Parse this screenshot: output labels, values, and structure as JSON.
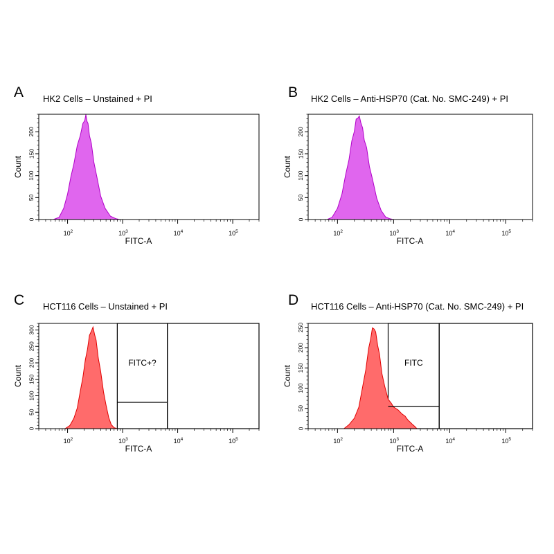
{
  "chart_data": [
    {
      "panel": "A",
      "type": "area",
      "title": "HK2 Cells – Unstained + PI",
      "xlabel": "FITC-A",
      "ylabel": "Count",
      "x_scale": "log",
      "xlim": [
        30,
        300000
      ],
      "xticks": [
        {
          "base": "10",
          "exp": "2"
        },
        {
          "base": "10",
          "exp": "3"
        },
        {
          "base": "10",
          "exp": "4"
        },
        {
          "base": "10",
          "exp": "5"
        }
      ],
      "ylim": [
        0,
        240
      ],
      "yticks": [
        0,
        50,
        100,
        150,
        200
      ],
      "fill_color": "#e066ee",
      "edge_color": "#b000c8",
      "series": [
        {
          "x": [
            55,
            70,
            85,
            100,
            115,
            130,
            150,
            170,
            190,
            205,
            215,
            225,
            235,
            250,
            270,
            300,
            340,
            400,
            480,
            600,
            750,
            900
          ],
          "y": [
            0,
            5,
            25,
            60,
            95,
            130,
            165,
            195,
            215,
            230,
            235,
            228,
            215,
            195,
            170,
            135,
            95,
            55,
            25,
            8,
            2,
            0
          ]
        }
      ],
      "gates": []
    },
    {
      "panel": "B",
      "type": "area",
      "title": "HK2 Cells – Anti-HSP70 (Cat. No. SMC-249) + PI",
      "xlabel": "FITC-A",
      "ylabel": "Count",
      "x_scale": "log",
      "xlim": [
        30,
        300000
      ],
      "xticks": [
        {
          "base": "10",
          "exp": "2"
        },
        {
          "base": "10",
          "exp": "3"
        },
        {
          "base": "10",
          "exp": "4"
        },
        {
          "base": "10",
          "exp": "5"
        }
      ],
      "ylim": [
        0,
        240
      ],
      "yticks": [
        0,
        50,
        100,
        150,
        200
      ],
      "fill_color": "#e066ee",
      "edge_color": "#b000c8",
      "series": [
        {
          "x": [
            65,
            80,
            100,
            120,
            140,
            160,
            180,
            200,
            215,
            230,
            245,
            260,
            280,
            300,
            330,
            370,
            420,
            500,
            600,
            720,
            850,
            1000
          ],
          "y": [
            0,
            5,
            25,
            60,
            100,
            140,
            175,
            205,
            225,
            235,
            232,
            225,
            205,
            185,
            160,
            125,
            90,
            50,
            20,
            6,
            2,
            0
          ]
        }
      ],
      "gates": []
    },
    {
      "panel": "C",
      "type": "area",
      "title": "HCT116 Cells – Unstained + PI",
      "xlabel": "FITC-A",
      "ylabel": "Count",
      "x_scale": "log",
      "xlim": [
        30,
        300000
      ],
      "xticks": [
        {
          "base": "10",
          "exp": "2"
        },
        {
          "base": "10",
          "exp": "3"
        },
        {
          "base": "10",
          "exp": "4"
        },
        {
          "base": "10",
          "exp": "5"
        }
      ],
      "ylim": [
        0,
        320
      ],
      "yticks": [
        0,
        50,
        100,
        150,
        200,
        250,
        300
      ],
      "fill_color": "#ff6b6b",
      "edge_color": "#e00000",
      "series": [
        {
          "x": [
            90,
            110,
            130,
            150,
            170,
            190,
            210,
            230,
            250,
            270,
            290,
            310,
            330,
            360,
            400,
            450,
            500,
            560,
            620,
            700,
            800
          ],
          "y": [
            0,
            10,
            30,
            65,
            110,
            160,
            205,
            245,
            280,
            300,
            305,
            290,
            265,
            220,
            170,
            115,
            70,
            35,
            12,
            3,
            0
          ]
        }
      ],
      "gates": [
        {
          "label": "FITC+?",
          "x": [
            800,
            6500
          ],
          "y_top": 320
        },
        {
          "label": "",
          "x": [
            6500,
            300000
          ],
          "y_top": 320
        }
      ],
      "gate_divider": {
        "x": [
          800,
          6500
        ],
        "y": 80
      }
    },
    {
      "panel": "D",
      "type": "area",
      "title": "HCT116 Cells – Anti-HSP70 (Cat. No. SMC-249) + PI",
      "xlabel": "FITC-A",
      "ylabel": "Count",
      "x_scale": "log",
      "xlim": [
        30,
        300000
      ],
      "xticks": [
        {
          "base": "10",
          "exp": "2"
        },
        {
          "base": "10",
          "exp": "3"
        },
        {
          "base": "10",
          "exp": "4"
        },
        {
          "base": "10",
          "exp": "5"
        }
      ],
      "ylim": [
        0,
        260
      ],
      "yticks": [
        0,
        50,
        100,
        150,
        200,
        250
      ],
      "fill_color": "#ff6b6b",
      "edge_color": "#e00000",
      "series": [
        {
          "x": [
            130,
            160,
            200,
            240,
            280,
            320,
            360,
            390,
            420,
            450,
            480,
            520,
            560,
            620,
            700,
            800,
            900,
            1000,
            1200,
            1400,
            1600,
            1800,
            2000,
            2200,
            2400,
            2600
          ],
          "y": [
            0,
            10,
            25,
            55,
            100,
            150,
            195,
            225,
            245,
            250,
            235,
            210,
            180,
            140,
            100,
            75,
            62,
            55,
            45,
            38,
            30,
            22,
            15,
            10,
            5,
            0
          ]
        }
      ],
      "gates": [
        {
          "label": "FITC",
          "x": [
            800,
            6500
          ],
          "y_top": 260
        },
        {
          "label": "",
          "x": [
            6500,
            300000
          ],
          "y_top": 260
        }
      ],
      "gate_divider": {
        "x": [
          800,
          6500
        ],
        "y": 55
      }
    }
  ]
}
